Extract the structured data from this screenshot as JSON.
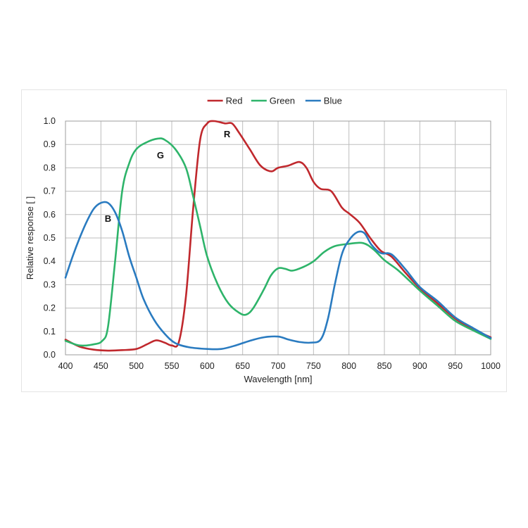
{
  "chart_data": {
    "type": "line",
    "title": "",
    "xlabel": "Wavelength [nm]",
    "ylabel": "Relative response [ ]",
    "xlim": [
      400,
      1000
    ],
    "ylim": [
      0,
      1.0
    ],
    "x_ticks": [
      "400",
      "450",
      "500",
      "550",
      "600",
      "650",
      "700",
      "750",
      "800",
      "850",
      "900",
      "950",
      "1000"
    ],
    "y_ticks": [
      "0.0",
      "0.1",
      "0.2",
      "0.3",
      "0.4",
      "0.5",
      "0.6",
      "0.7",
      "0.8",
      "0.9",
      "1.0"
    ],
    "grid": true,
    "legend_position": "top-center",
    "series": [
      {
        "name": "Red",
        "color": "#c0282d",
        "points": [
          [
            400,
            0.065
          ],
          [
            420,
            0.035
          ],
          [
            440,
            0.022
          ],
          [
            460,
            0.018
          ],
          [
            480,
            0.02
          ],
          [
            500,
            0.025
          ],
          [
            515,
            0.045
          ],
          [
            528,
            0.062
          ],
          [
            540,
            0.052
          ],
          [
            550,
            0.04
          ],
          [
            560,
            0.055
          ],
          [
            570,
            0.25
          ],
          [
            580,
            0.62
          ],
          [
            590,
            0.92
          ],
          [
            600,
            0.99
          ],
          [
            610,
            1.0
          ],
          [
            625,
            0.99
          ],
          [
            635,
            0.99
          ],
          [
            645,
            0.95
          ],
          [
            660,
            0.88
          ],
          [
            675,
            0.81
          ],
          [
            690,
            0.785
          ],
          [
            700,
            0.8
          ],
          [
            715,
            0.81
          ],
          [
            730,
            0.825
          ],
          [
            740,
            0.8
          ],
          [
            750,
            0.74
          ],
          [
            760,
            0.71
          ],
          [
            775,
            0.7
          ],
          [
            790,
            0.63
          ],
          [
            800,
            0.605
          ],
          [
            815,
            0.565
          ],
          [
            830,
            0.5
          ],
          [
            845,
            0.445
          ],
          [
            860,
            0.42
          ],
          [
            880,
            0.35
          ],
          [
            900,
            0.285
          ],
          [
            925,
            0.22
          ],
          [
            950,
            0.155
          ],
          [
            975,
            0.11
          ],
          [
            1000,
            0.075
          ]
        ]
      },
      {
        "name": "Green",
        "color": "#2eb46a",
        "points": [
          [
            400,
            0.06
          ],
          [
            420,
            0.04
          ],
          [
            440,
            0.045
          ],
          [
            452,
            0.06
          ],
          [
            460,
            0.12
          ],
          [
            470,
            0.4
          ],
          [
            480,
            0.7
          ],
          [
            490,
            0.82
          ],
          [
            500,
            0.88
          ],
          [
            515,
            0.91
          ],
          [
            530,
            0.925
          ],
          [
            540,
            0.92
          ],
          [
            555,
            0.88
          ],
          [
            570,
            0.8
          ],
          [
            580,
            0.68
          ],
          [
            590,
            0.55
          ],
          [
            600,
            0.42
          ],
          [
            615,
            0.3
          ],
          [
            630,
            0.22
          ],
          [
            645,
            0.18
          ],
          [
            655,
            0.172
          ],
          [
            665,
            0.2
          ],
          [
            680,
            0.28
          ],
          [
            690,
            0.34
          ],
          [
            700,
            0.37
          ],
          [
            710,
            0.368
          ],
          [
            720,
            0.36
          ],
          [
            735,
            0.375
          ],
          [
            750,
            0.4
          ],
          [
            765,
            0.44
          ],
          [
            780,
            0.465
          ],
          [
            800,
            0.475
          ],
          [
            820,
            0.478
          ],
          [
            835,
            0.45
          ],
          [
            850,
            0.405
          ],
          [
            870,
            0.36
          ],
          [
            900,
            0.275
          ],
          [
            925,
            0.21
          ],
          [
            950,
            0.145
          ],
          [
            975,
            0.105
          ],
          [
            1000,
            0.068
          ]
        ]
      },
      {
        "name": "Blue",
        "color": "#2a7bc0",
        "points": [
          [
            400,
            0.33
          ],
          [
            410,
            0.42
          ],
          [
            420,
            0.5
          ],
          [
            430,
            0.57
          ],
          [
            440,
            0.625
          ],
          [
            450,
            0.65
          ],
          [
            460,
            0.65
          ],
          [
            470,
            0.61
          ],
          [
            480,
            0.53
          ],
          [
            490,
            0.42
          ],
          [
            500,
            0.33
          ],
          [
            510,
            0.24
          ],
          [
            525,
            0.15
          ],
          [
            540,
            0.09
          ],
          [
            555,
            0.05
          ],
          [
            575,
            0.032
          ],
          [
            600,
            0.025
          ],
          [
            620,
            0.025
          ],
          [
            640,
            0.04
          ],
          [
            660,
            0.06
          ],
          [
            680,
            0.075
          ],
          [
            700,
            0.078
          ],
          [
            715,
            0.065
          ],
          [
            730,
            0.055
          ],
          [
            745,
            0.052
          ],
          [
            760,
            0.065
          ],
          [
            770,
            0.15
          ],
          [
            780,
            0.3
          ],
          [
            790,
            0.43
          ],
          [
            800,
            0.49
          ],
          [
            812,
            0.525
          ],
          [
            822,
            0.52
          ],
          [
            832,
            0.47
          ],
          [
            845,
            0.435
          ],
          [
            860,
            0.43
          ],
          [
            880,
            0.365
          ],
          [
            900,
            0.29
          ],
          [
            925,
            0.23
          ],
          [
            950,
            0.16
          ],
          [
            975,
            0.115
          ],
          [
            1000,
            0.072
          ]
        ]
      }
    ],
    "annotations": [
      {
        "text": "B",
        "x": 460,
        "y": 0.57
      },
      {
        "text": "G",
        "x": 534,
        "y": 0.84
      },
      {
        "text": "R",
        "x": 628,
        "y": 0.93
      }
    ]
  }
}
